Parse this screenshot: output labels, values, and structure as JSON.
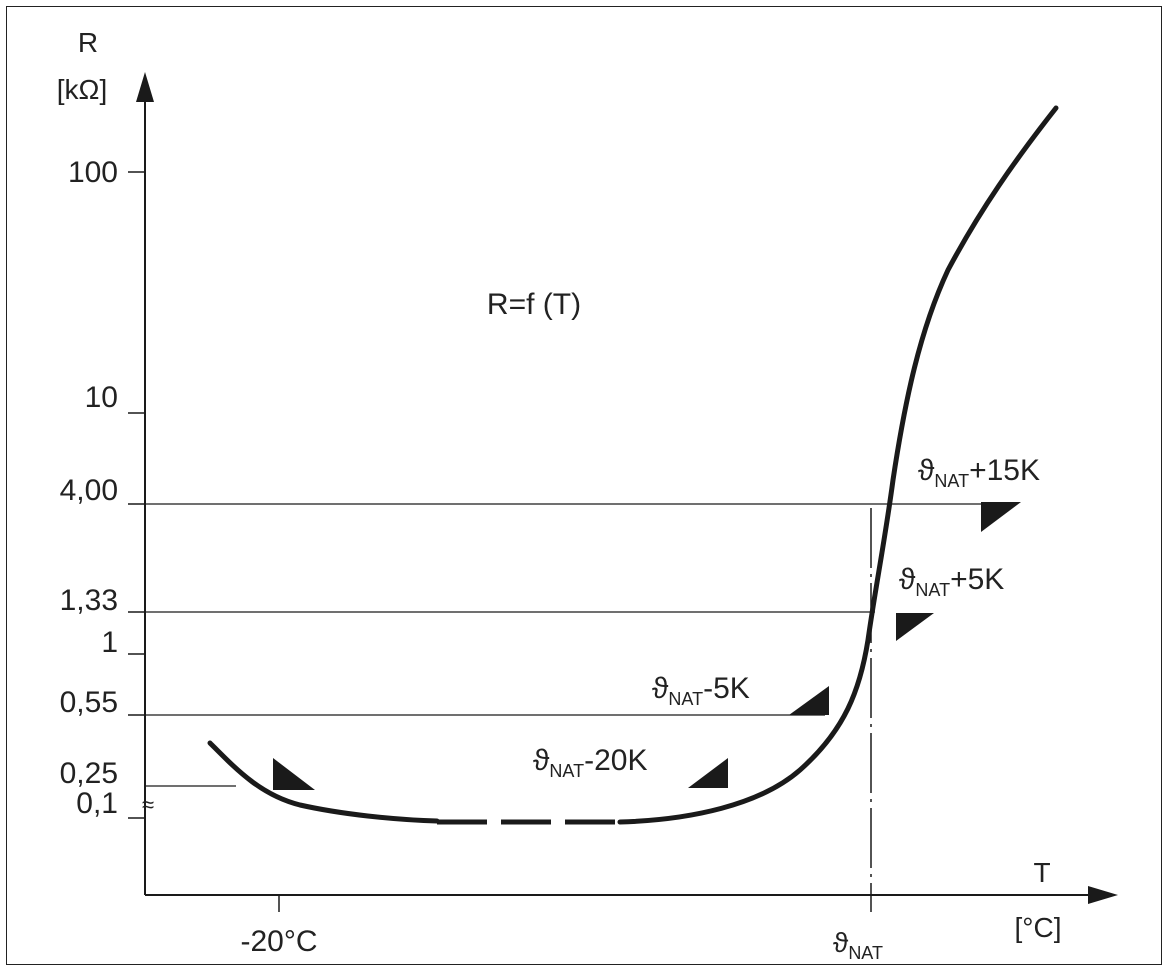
{
  "axes": {
    "y_name": "R",
    "y_unit": "[kΩ]",
    "x_name": "T",
    "x_unit": "[°C]"
  },
  "y_ticks": [
    "100",
    "10",
    "4,00",
    "1,33",
    "1",
    "0,55",
    "0,25",
    "0,1"
  ],
  "x_ticks": [
    "-20°C"
  ],
  "x_marker": {
    "symbol": "ϑ",
    "sub": "NAT"
  },
  "formula": "R=f (T)",
  "annotations": [
    {
      "symbol": "ϑ",
      "sub": "NAT",
      "suffix": "+15K"
    },
    {
      "symbol": "ϑ",
      "sub": "NAT",
      "suffix": "+5K"
    },
    {
      "symbol": "ϑ",
      "sub": "NAT",
      "suffix": "-5K"
    },
    {
      "symbol": "ϑ",
      "sub": "NAT",
      "suffix": "-20K"
    }
  ],
  "break_symbol": "≈",
  "colors": {
    "ink": "#1a1a1a",
    "background": "#ffffff"
  }
}
